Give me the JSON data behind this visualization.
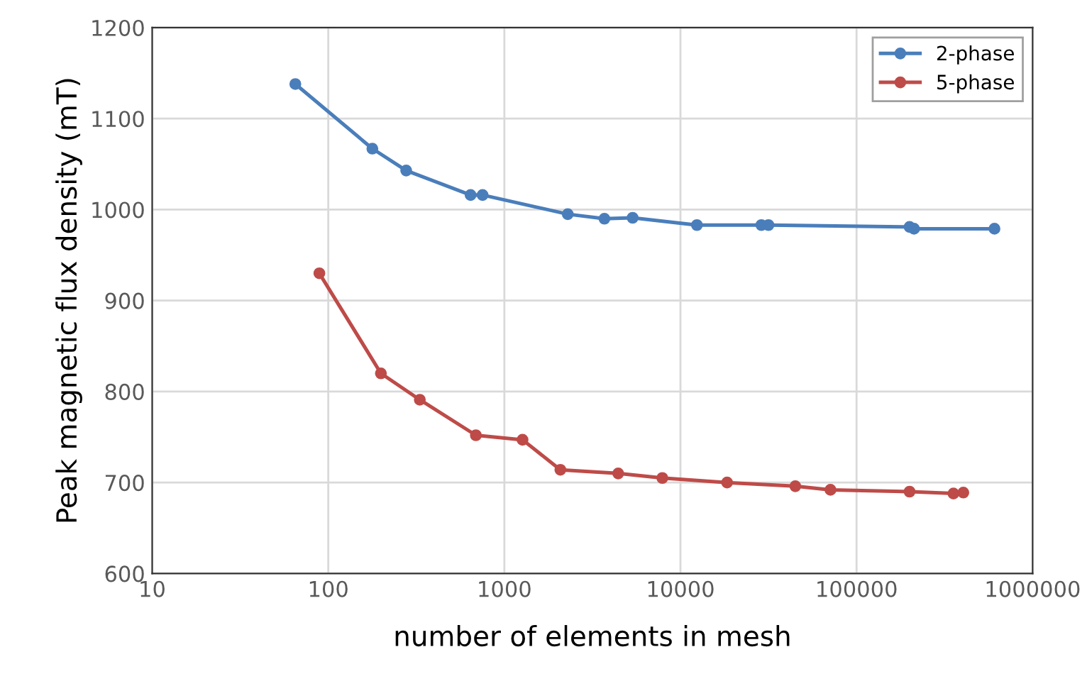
{
  "chart_data": {
    "type": "line",
    "xlabel": "number of elements in mesh",
    "ylabel": "Peak magnetic flux density (mT)",
    "log": "x",
    "xlim": [
      10,
      1000000
    ],
    "xticks": [
      10,
      100,
      1000,
      10000,
      100000,
      1000000
    ],
    "ylim": [
      600,
      1200
    ],
    "yticks": [
      600,
      700,
      800,
      900,
      1000,
      1100,
      1200
    ],
    "grid": true,
    "legend": "top right",
    "marker": "circle",
    "line_style": "solid",
    "series": [
      {
        "name": "2-phase",
        "color": "#4a7ebb",
        "x": [
          65,
          178,
          277,
          643,
          752,
          2290,
          3700,
          5350,
          12400,
          28800,
          31600,
          200000,
          212000,
          607000
        ],
        "values": [
          1138,
          1067,
          1043,
          1016,
          1016,
          995,
          990,
          991,
          983,
          983,
          983,
          981,
          979,
          979
        ]
      },
      {
        "name": "5-phase",
        "color": "#be4b48",
        "x": [
          89,
          199,
          331,
          689,
          1268,
          2080,
          4430,
          7890,
          18400,
          44900,
          71100,
          200000,
          355000,
          404000
        ],
        "values": [
          930,
          820,
          791,
          752,
          747,
          714,
          710,
          705,
          700,
          696,
          692,
          690,
          688,
          689
        ]
      }
    ]
  }
}
